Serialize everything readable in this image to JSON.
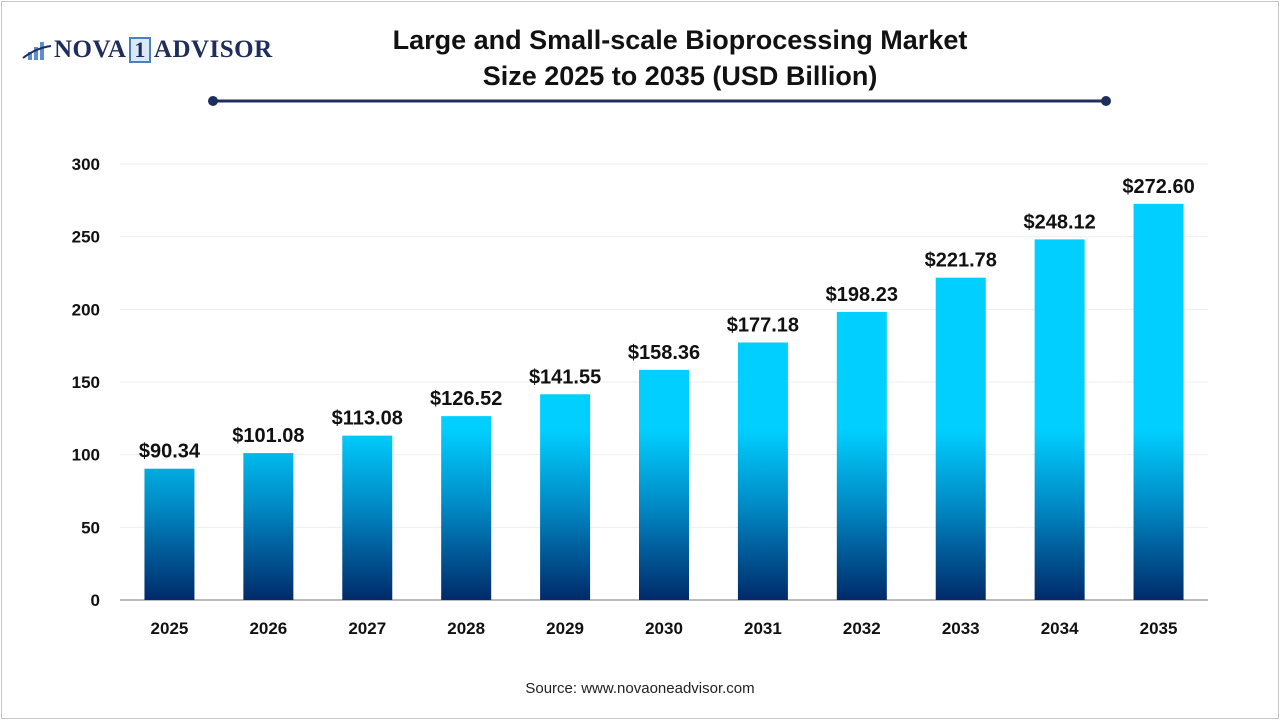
{
  "logo": {
    "text_left": "NOVA",
    "text_mid": "1",
    "text_right": "ADVISOR"
  },
  "source": "Source: www.novaoneadvisor.com",
  "colors": {
    "bar_top": "#00cfff",
    "bar_bottom": "#002a6a",
    "title_rule": "#1f2d5c"
  },
  "chart_data": {
    "type": "bar",
    "title": "Large and Small-scale Bioprocessing Market Size 2025 to 2035 (USD Billion)",
    "title_line1": "Large and Small-scale Bioprocessing Market",
    "title_line2": "Size 2025 to 2035 (USD Billion)",
    "categories": [
      "2025",
      "2026",
      "2027",
      "2028",
      "2029",
      "2030",
      "2031",
      "2032",
      "2033",
      "2034",
      "2035"
    ],
    "values": [
      90.34,
      101.08,
      113.08,
      126.52,
      141.55,
      158.36,
      177.18,
      198.23,
      221.78,
      248.12,
      272.6
    ],
    "labels": [
      "$90.34",
      "$101.08",
      "$113.08",
      "$126.52",
      "$141.55",
      "$158.36",
      "$177.18",
      "$198.23",
      "$221.78",
      "$248.12",
      "$272.60"
    ],
    "ylim": [
      0,
      300
    ],
    "yticks": [
      0,
      50,
      100,
      150,
      200,
      250,
      300
    ],
    "grid": true,
    "xlabel": "",
    "ylabel": ""
  }
}
